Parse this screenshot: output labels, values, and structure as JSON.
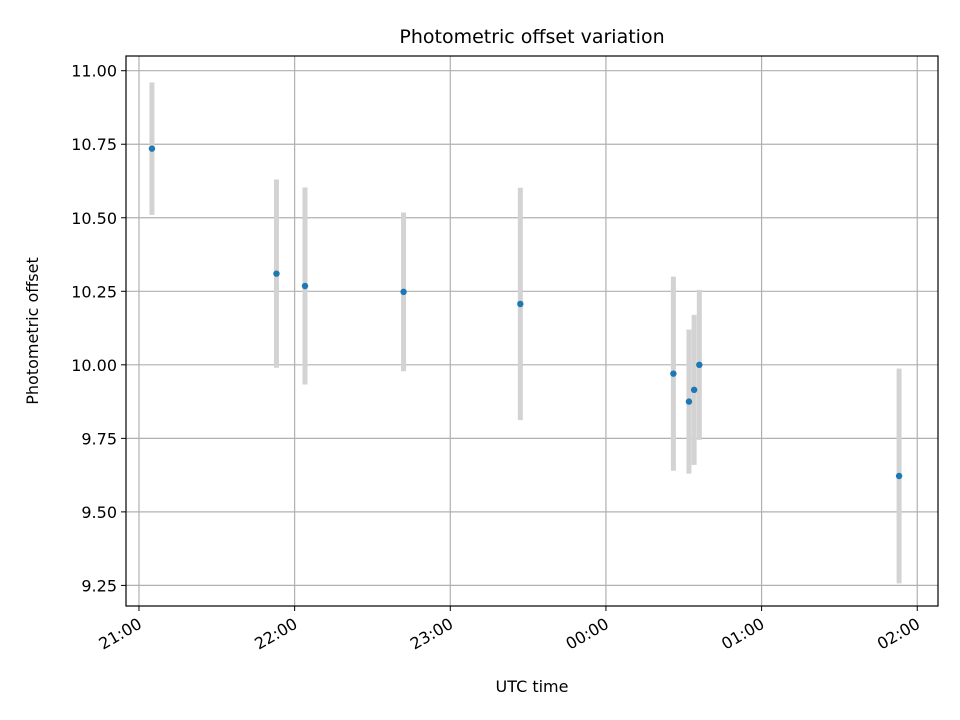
{
  "chart_data": {
    "type": "scatter",
    "title": "Photometric offset variation",
    "xlabel": "UTC time",
    "ylabel": "Photometric offset",
    "x_tick_labels": [
      "21:00",
      "22:00",
      "23:00",
      "00:00",
      "01:00",
      "02:00"
    ],
    "y_tick_labels": [
      "9.25",
      "9.50",
      "9.75",
      "10.00",
      "10.25",
      "10.50",
      "10.75",
      "11.00"
    ],
    "y_ticks": [
      9.25,
      9.5,
      9.75,
      10.0,
      10.25,
      10.5,
      10.75,
      11.0
    ],
    "xlim": [
      "20:55",
      "02:08"
    ],
    "ylim": [
      9.18,
      11.05
    ],
    "grid": true,
    "colors": {
      "point": "#1f77b4",
      "errorbar": "#d3d3d3",
      "grid": "#b0b0b0"
    },
    "points": [
      {
        "time": "21:05",
        "y": 10.735,
        "yerr": 0.225
      },
      {
        "time": "21:53",
        "y": 10.31,
        "yerr": 0.32
      },
      {
        "time": "22:04",
        "y": 10.268,
        "yerr": 0.335
      },
      {
        "time": "22:42",
        "y": 10.248,
        "yerr": 0.27
      },
      {
        "time": "23:27",
        "y": 10.207,
        "yerr": 0.395
      },
      {
        "time": "00:26",
        "y": 9.97,
        "yerr": 0.33
      },
      {
        "time": "00:32",
        "y": 9.875,
        "yerr": 0.245
      },
      {
        "time": "00:34",
        "y": 9.915,
        "yerr": 0.255
      },
      {
        "time": "00:36",
        "y": 10.0,
        "yerr": 0.255
      },
      {
        "time": "01:53",
        "y": 9.622,
        "yerr": 0.365
      }
    ]
  }
}
